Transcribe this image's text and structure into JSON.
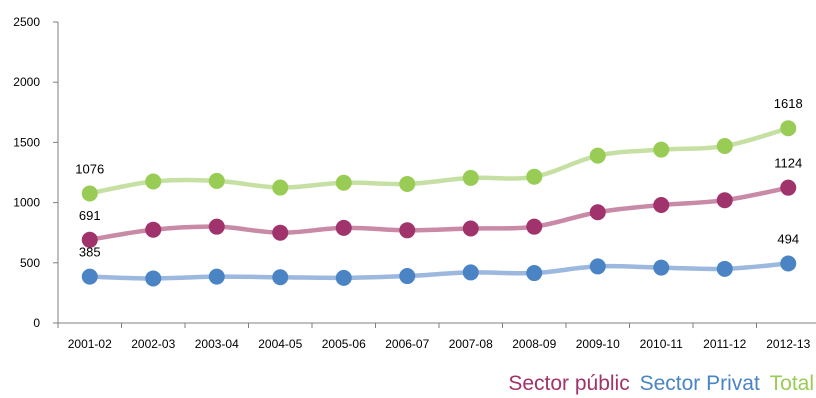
{
  "chart_data": {
    "type": "line",
    "categories": [
      "2001-02",
      "2002-03",
      "2003-04",
      "2004-05",
      "2005-06",
      "2006-07",
      "2007-08",
      "2008-09",
      "2009-10",
      "2010-11",
      "2011-12",
      "2012-13"
    ],
    "ylim": [
      0,
      2500
    ],
    "yticks": [
      0,
      500,
      1000,
      1500,
      2000,
      2500
    ],
    "grid": false,
    "legend_position": "bottom-right",
    "series": [
      {
        "name": "Sector públic",
        "color": "#a0336b",
        "line_color": "#c88aa6",
        "values": [
          691,
          775,
          800,
          750,
          790,
          770,
          785,
          800,
          920,
          980,
          1020,
          1124
        ]
      },
      {
        "name": "Sector Privat",
        "color": "#4a84c4",
        "line_color": "#9cb8de",
        "values": [
          385,
          370,
          385,
          380,
          375,
          390,
          420,
          415,
          470,
          460,
          450,
          494
        ]
      },
      {
        "name": "Total",
        "color": "#99cc55",
        "line_color": "#c6e0a4",
        "values": [
          1076,
          1175,
          1180,
          1125,
          1165,
          1155,
          1205,
          1215,
          1390,
          1440,
          1470,
          1618
        ]
      }
    ],
    "data_labels": [
      {
        "series": 2,
        "index": 0,
        "text": "1076"
      },
      {
        "series": 2,
        "index": 11,
        "text": "1618"
      },
      {
        "series": 0,
        "index": 0,
        "text": "691"
      },
      {
        "series": 0,
        "index": 11,
        "text": "1124"
      },
      {
        "series": 1,
        "index": 0,
        "text": "385"
      },
      {
        "series": 1,
        "index": 11,
        "text": "494"
      }
    ]
  }
}
